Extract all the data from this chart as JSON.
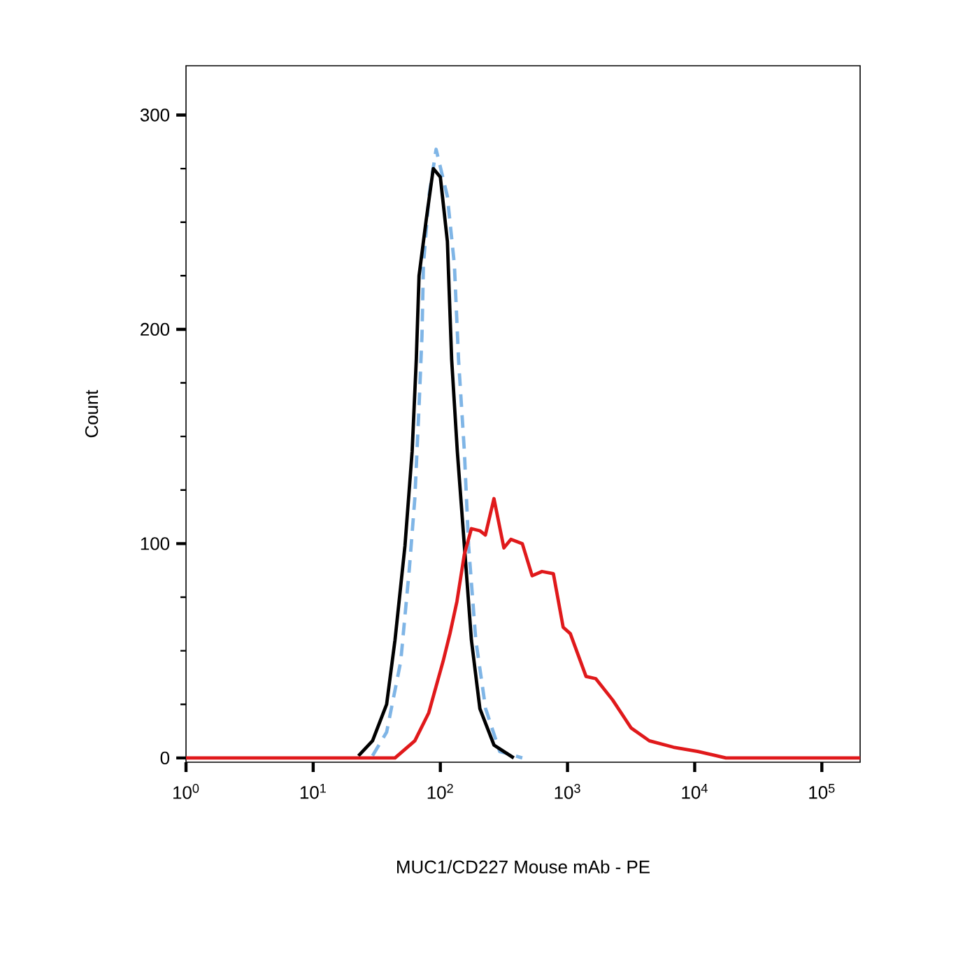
{
  "chart_data": {
    "type": "line",
    "xlabel": "MUC1/CD227 Mouse mAb - PE",
    "ylabel": "Count",
    "log": "x",
    "marker": "none",
    "xlim": [
      1,
      200000
    ],
    "ylim": [
      -2,
      323
    ],
    "xticks": [
      {
        "value": 1,
        "label": "10$^{0}$"
      },
      {
        "value": 10,
        "label": "10$^{1}$"
      },
      {
        "value": 100,
        "label": "10$^{2}$"
      },
      {
        "value": 1000,
        "label": "10$^{3}$"
      },
      {
        "value": 10000,
        "label": "10$^{4}$"
      },
      {
        "value": 100000,
        "label": "10$^{5}$"
      }
    ],
    "yticks": [
      0,
      100,
      200,
      300
    ],
    "series": [
      {
        "color": "#7fb5e6",
        "line_style": "dashed",
        "x": [
          29.3,
          37.8,
          48.8,
          57,
          63,
          68,
          71.7,
          73.6,
          81.3,
          92.6,
          113.6,
          129,
          139,
          154.5,
          166.8,
          190,
          227,
          293,
          441
        ],
        "values": [
          1,
          12,
          45,
          88,
          121,
          164,
          197,
          230,
          262,
          284,
          262,
          230,
          186,
          143,
          99,
          55,
          23,
          3,
          0
        ]
      },
      {
        "color": "#000000",
        "line_style": "solid",
        "x": [
          22.7,
          29.3,
          37.8,
          44,
          52.7,
          60,
          64.7,
          68,
          77.4,
          88,
          100,
          113.6,
          122.7,
          136,
          154.5,
          175.5,
          204.6,
          264,
          378
        ],
        "values": [
          1,
          8,
          25,
          55,
          99,
          143,
          186,
          225,
          251,
          275,
          271,
          241,
          186,
          143,
          99,
          55,
          23,
          6,
          0
        ]
      },
      {
        "color": "#e0191b",
        "line_style": "solid",
        "x": [
          1,
          44,
          63,
          81,
          105,
          119,
          135,
          154.5,
          175.5,
          204.6,
          226,
          264,
          316,
          359,
          441,
          527,
          630,
          774,
          924,
          1052,
          1399,
          1668,
          2267,
          3162,
          4400,
          6813,
          10600,
          17600,
          200000
        ],
        "values": [
          0,
          0,
          8,
          21,
          45,
          58,
          73,
          95,
          107,
          106,
          104,
          121,
          98,
          102,
          100,
          85,
          87,
          86,
          61,
          58,
          38,
          37,
          27,
          14,
          8,
          5,
          3,
          0,
          0
        ]
      }
    ]
  }
}
